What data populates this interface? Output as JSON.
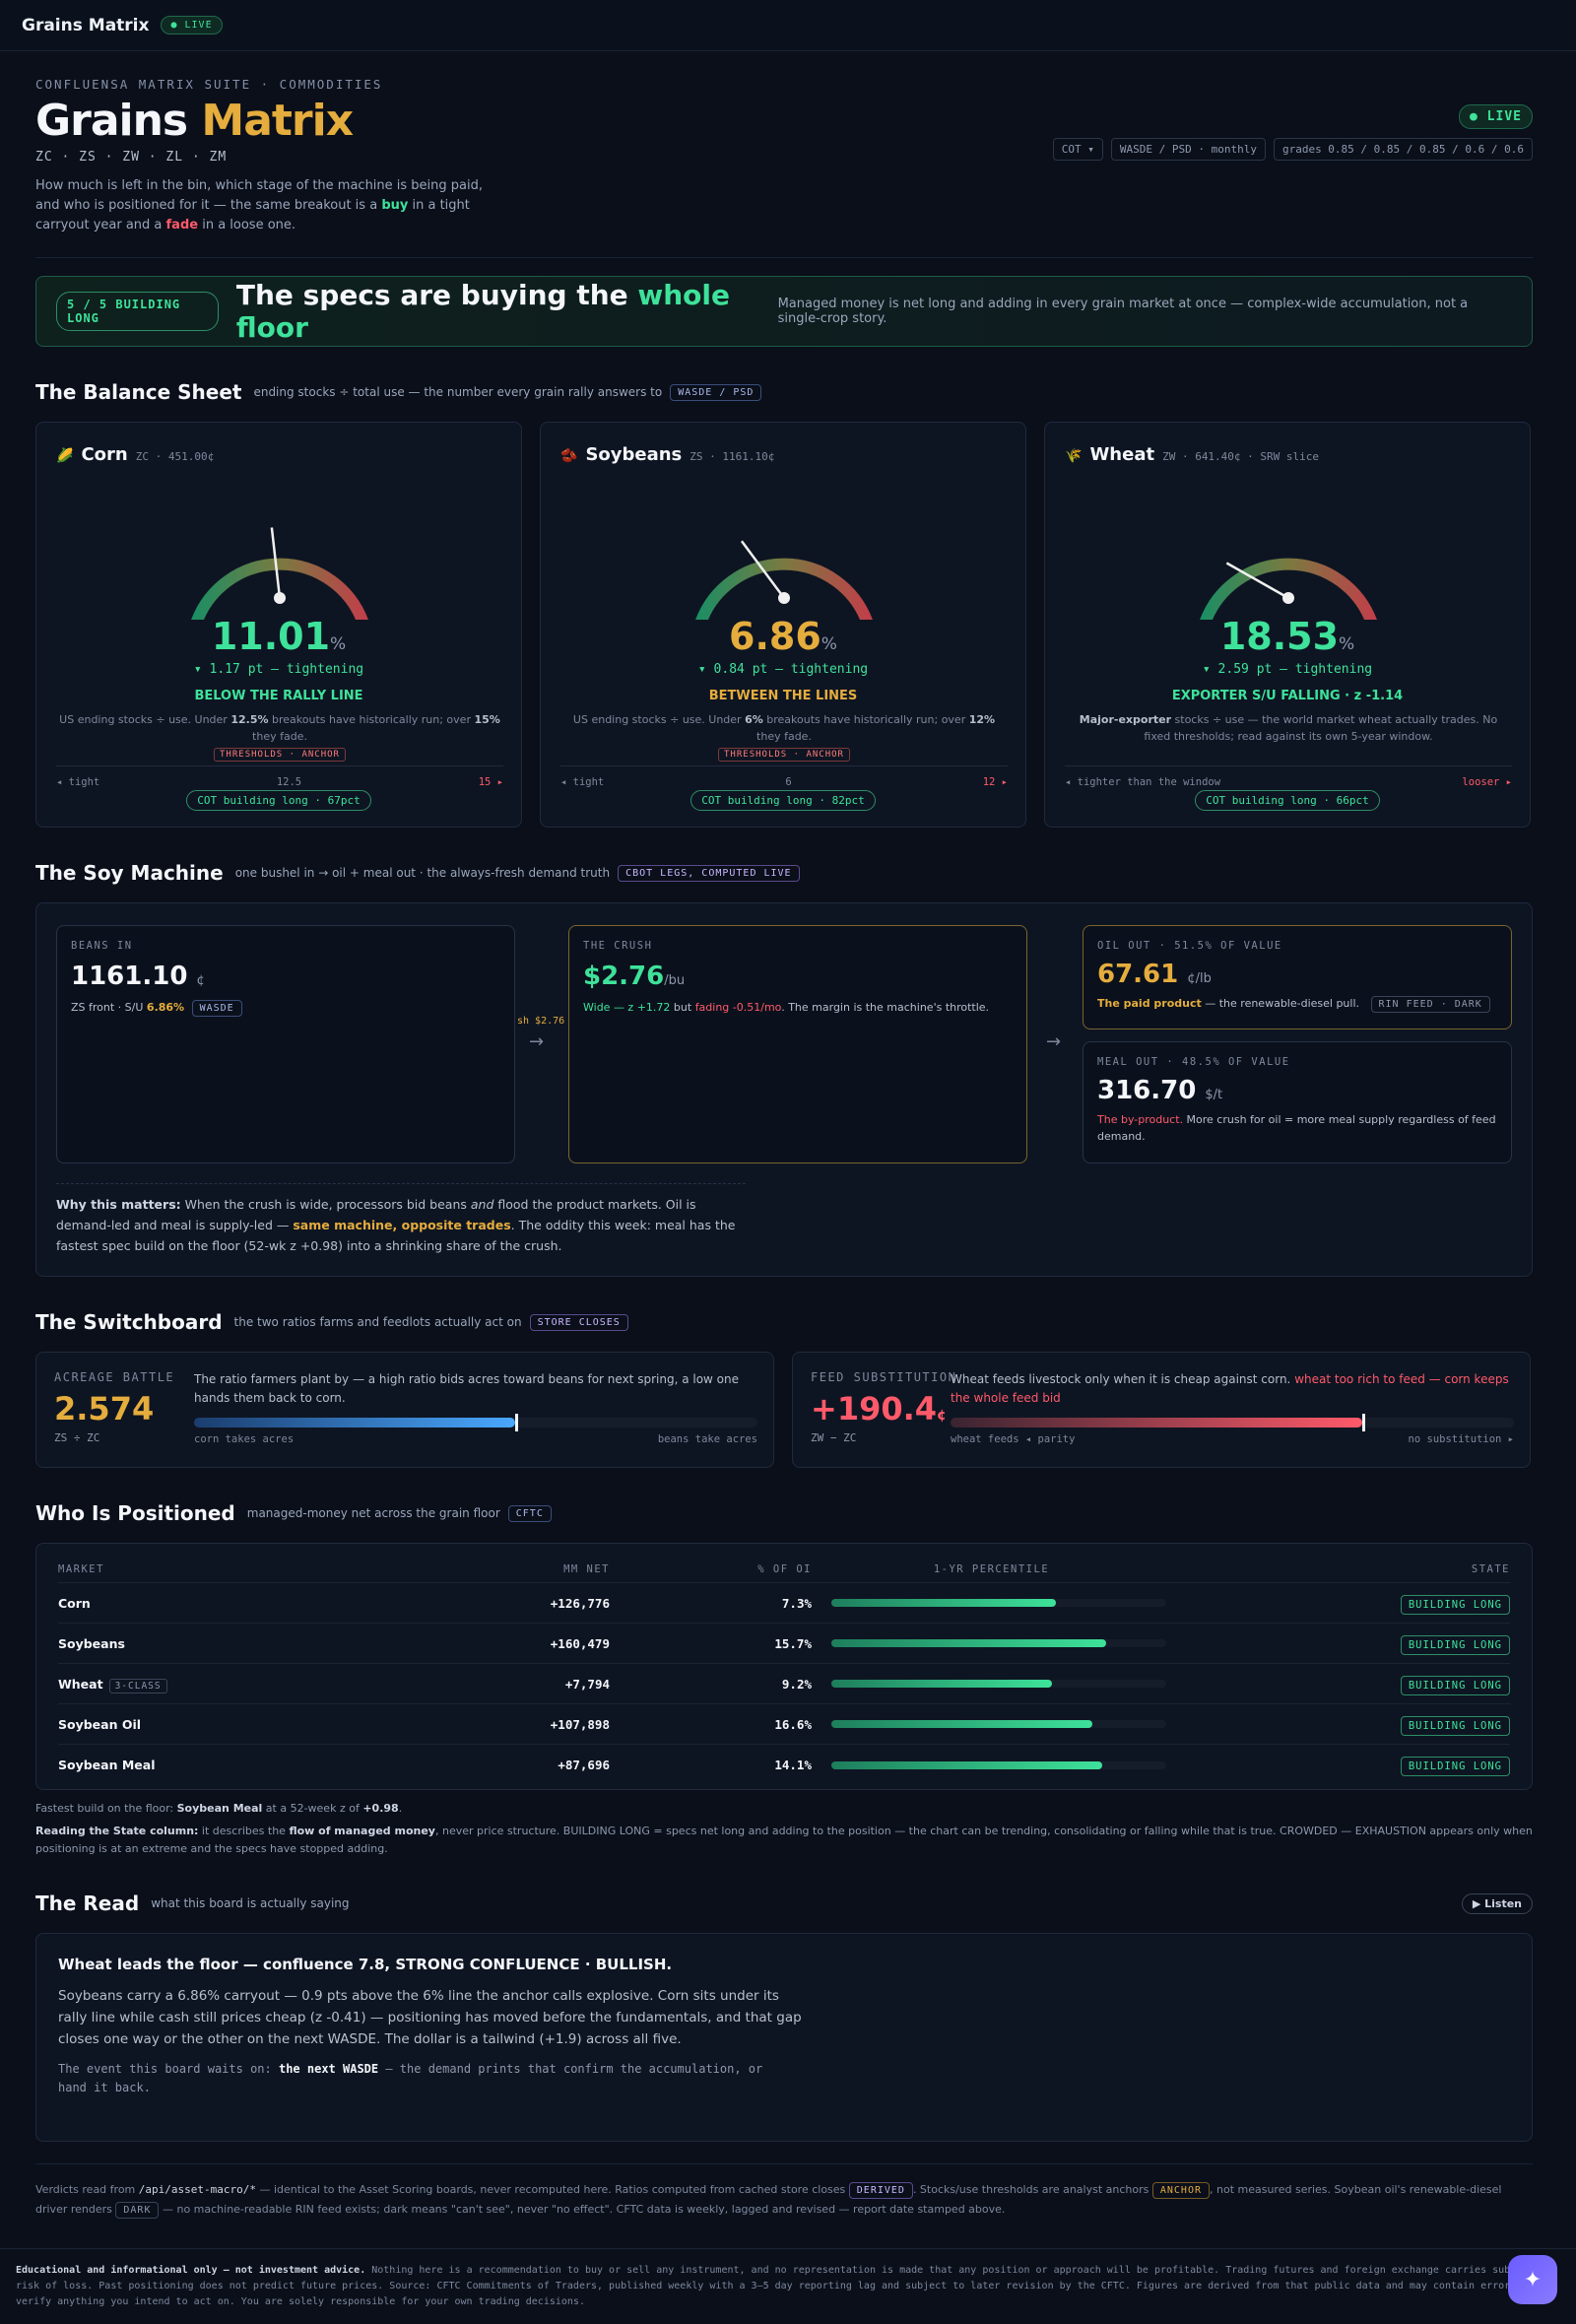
{
  "topbar": {
    "brand": "Grains Matrix",
    "live": "● LIVE"
  },
  "header": {
    "eyebrow": "CONFLUENSA MATRIX SUITE · COMMODITIES",
    "title_a": "Grains ",
    "title_b": "Matrix",
    "tickers": "ZC · ZS · ZW · ZL · ZM",
    "lede_a": "How much is left in the bin, which stage of the machine is being paid, and who is positioned for it — the same breakout is a ",
    "lede_buy": "buy",
    "lede_b": " in a tight carryout year and a ",
    "lede_fade": "fade",
    "lede_c": " in a loose one.",
    "live": "● LIVE",
    "chip_cot": "COT ▾",
    "chip_wasde": "WASDE / PSD · monthly",
    "chip_grades": "grades 0.85 / 0.85 / 0.85 / 0.6 / 0.6"
  },
  "banner": {
    "pill": "5 / 5 BUILDING LONG",
    "head_a": "The specs are buying the ",
    "head_b": "whole floor",
    "sub": "Managed money is net long and adding in every grain market at once — complex-wide accumulation, not a single-crop story."
  },
  "balance": {
    "title": "The Balance Sheet",
    "sub": "ending stocks ÷ total use — the number every grain rally answers to",
    "tag": "WASDE / PSD",
    "cards": [
      {
        "icon": "🌽",
        "name": "Corn",
        "px": "ZC · 451.00¢",
        "value": "11.01",
        "unit": "%",
        "delta": "▾ 1.17 pt — tightening",
        "verdict": "BELOW THE RALLY LINE",
        "verdict_color": "#3ee29a",
        "value_color": "#3ee29a",
        "note_a": "US ending stocks ÷ use. Under ",
        "note_b": "12.5%",
        "note_c": " breakouts have historically run; over ",
        "note_d": "15%",
        "note_e": " they fade.",
        "anchor": "THRESHOLDS · ANCHOR",
        "left": "◂ tight",
        "mid": "12.5",
        "right": "15 ▸",
        "cot": "COT building long · 67pct",
        "gauge_val": 0.47
      },
      {
        "icon": "🫘",
        "name": "Soybeans",
        "px": "ZS · 1161.10¢",
        "value": "6.86",
        "unit": "%",
        "delta": "▾ 0.84 pt — tightening",
        "verdict": "BETWEEN THE LINES",
        "verdict_color": "#e5ad3d",
        "value_color": "#e5ad3d",
        "note_a": "US ending stocks ÷ use. Under ",
        "note_b": "6%",
        "note_c": " breakouts have historically run; over ",
        "note_d": "12%",
        "note_e": " they fade.",
        "anchor": "THRESHOLDS · ANCHOR",
        "left": "◂ tight",
        "mid": "6",
        "right": "12 ▸",
        "cot": "COT building long · 82pct",
        "gauge_val": 0.33
      },
      {
        "icon": "🌾",
        "name": "Wheat",
        "px": "ZW · 641.40¢ · SRW slice",
        "value": "18.53",
        "unit": "%",
        "delta": "▾ 2.59 pt — tightening",
        "verdict": "EXPORTER S/U FALLING · z -1.14",
        "verdict_color": "#3ee29a",
        "value_color": "#3ee29a",
        "note_a": "",
        "note_b": "Major-exporter",
        "note_c": " stocks ÷ use — the world market wheat actually trades. No fixed thresholds; read against its own 5-year window.",
        "note_d": "",
        "note_e": "",
        "anchor": "",
        "left": "◂ tighter than the window",
        "mid": "",
        "right": "looser ▸",
        "cot": "COT building long · 66pct",
        "gauge_val": 0.22
      }
    ]
  },
  "soy": {
    "title": "The Soy Machine",
    "sub": "one bushel in → oil + meal out · the always-fresh demand truth",
    "tag": "CBOT LEGS, COMPUTED LIVE",
    "beans_lab": "BEANS IN",
    "beans_val": "1161.10",
    "beans_unit": "¢",
    "beans_txt": "ZS front · S/U ",
    "beans_su": "6.86%",
    "beans_tag": "WASDE",
    "crush_lab": "THE CRUSH",
    "crush_val": "$2.76",
    "crush_unit": "/bu",
    "crush_a": "Wide — z +1.72",
    "crush_b": " but ",
    "crush_c": "fading -0.51/mo",
    "crush_d": ". The margin is the machine's throttle.",
    "crush_arrow": "sh $2.76",
    "oil_lab": "OIL OUT · 51.5% OF VALUE",
    "oil_val": "67.61",
    "oil_unit": "¢/lb",
    "oil_a": "The paid product",
    "oil_b": " — the renewable-diesel pull.",
    "oil_tag": "RIN FEED · DARK",
    "meal_lab": "MEAL OUT · 48.5% OF VALUE",
    "meal_val": "316.70",
    "meal_unit": "$/t",
    "meal_a": "The by-product.",
    "meal_b": " More crush for oil = more meal supply regardless of feed demand.",
    "why_a": "Why this matters:",
    "why_b": " When the crush is wide, processors bid beans ",
    "why_c": "and",
    "why_d": " flood the product markets. Oil is demand-led and meal is supply-led — ",
    "why_e": "same machine, opposite trades",
    "why_f": ". The oddity this week: meal has the fastest spec build on the floor (52-wk z +0.98) into a shrinking share of the crush."
  },
  "switch": {
    "title": "The Switchboard",
    "sub": "the two ratios farms and feedlots actually act on",
    "tag": "STORE CLOSES",
    "a_lab": "ACREAGE BATTLE",
    "a_val": "2.574",
    "a_sm": "ZS ÷ ZC",
    "a_desc": "The ratio farmers plant by — a high ratio bids acres toward beans for next spring, a low one hands them back to corn.",
    "a_left": "corn takes acres",
    "a_right": "beans take acres",
    "a_level": 0.57,
    "b_lab": "FEED SUBSTITUTION",
    "b_val": "+190.4",
    "b_unit": "¢",
    "b_sm": "ZW − ZC",
    "b_desc_a": "Wheat feeds livestock only when it is cheap against corn. ",
    "b_desc_b": "wheat too rich to feed — corn keeps the whole feed bid",
    "b_left": "wheat feeds ◂ parity",
    "b_right": "no substitution ▸",
    "b_level": 0.73
  },
  "positioned": {
    "title": "Who Is Positioned",
    "sub": "managed-money net across the grain floor",
    "tag": "CFTC",
    "headers": [
      "MARKET",
      "MM NET",
      "% OF OI",
      "1-YR PERCENTILE",
      "STATE"
    ],
    "rows": [
      {
        "market": "Corn",
        "tag": "",
        "net": "+126,776",
        "oi": "7.3%",
        "pct": 0.67,
        "state": "BUILDING LONG"
      },
      {
        "market": "Soybeans",
        "tag": "",
        "net": "+160,479",
        "oi": "15.7%",
        "pct": 0.82,
        "state": "BUILDING LONG"
      },
      {
        "market": "Wheat",
        "tag": "3-CLASS",
        "net": "+7,794",
        "oi": "9.2%",
        "pct": 0.66,
        "state": "BUILDING LONG"
      },
      {
        "market": "Soybean Oil",
        "tag": "",
        "net": "+107,898",
        "oi": "16.6%",
        "pct": 0.78,
        "state": "BUILDING LONG"
      },
      {
        "market": "Soybean Meal",
        "tag": "",
        "net": "+87,696",
        "oi": "14.1%",
        "pct": 0.81,
        "state": "BUILDING LONG"
      }
    ],
    "foot_a": "Fastest build on the floor: ",
    "foot_b": "Soybean Meal",
    "foot_c": " at a 52-week z of ",
    "foot_d": "+0.98",
    "foot_e": ".",
    "foot2_a": "Reading the State column:",
    "foot2_b": " it describes the ",
    "foot2_c": "flow of managed money",
    "foot2_d": ", never price structure. BUILDING LONG = specs net long and adding to the position — the chart can be trending, consolidating or falling while that is true. CROWDED — EXHAUSTION appears only when positioning is at an extreme and the specs have stopped adding."
  },
  "read": {
    "title": "The Read",
    "sub": "what this board is actually saying",
    "listen": "▶ Listen",
    "head": "Wheat leads the floor — confluence 7.8, STRONG CONFLUENCE · BULLISH.",
    "body": "Soybeans carry a 6.86% carryout — 0.9 pts above the 6% line the anchor calls explosive. Corn sits under its rally line while cash still prices cheap (z -0.41) — positioning has moved before the fundamentals, and that gap closes one way or the other on the next WASDE. The dollar is a tailwind (+1.9) across all five.",
    "wait_a": "The event this board waits on: ",
    "wait_b": "the next WASDE",
    "wait_c": " — the demand prints that confirm the accumulation, or hand it back."
  },
  "footnote": {
    "a": "Verdicts read from ",
    "b": "/api/asset-macro/*",
    "c": " — identical to the Asset Scoring boards, never recomputed here. Ratios computed from cached store closes ",
    "t1": "DERIVED",
    "d": ". Stocks/use thresholds are analyst anchors ",
    "t2": "ANCHOR",
    "e": ", not measured series. Soybean oil's renewable-diesel driver renders ",
    "t3": "DARK",
    "f": " — no machine-readable RIN feed exists; dark means \"can't see\", never \"no effect\". CFTC data is weekly, lagged and revised — report date stamped above."
  },
  "disclaimer": {
    "a": "Educational and informational only — not investment advice.",
    "b": " Nothing here is a recommendation to buy or sell any instrument, and no representation is made that any position or approach will be profitable. Trading futures and foreign exchange carries substantial risk of loss. Past positioning does not predict future prices. Source: CFTC Commitments of Traders, published weekly with a 3–5 day reporting lag and subject to later revision by the CFTC. Figures are derived from that public data and may contain errors — verify anything you intend to act on. You are solely responsible for your own trading decisions."
  },
  "fab": "✦"
}
